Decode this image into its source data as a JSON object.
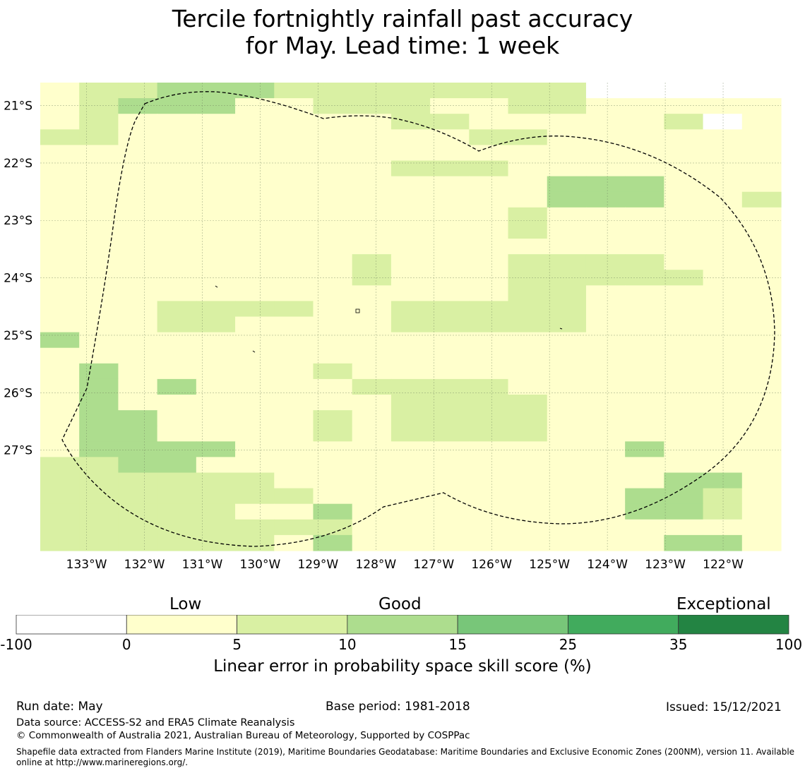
{
  "title_line1": "Tercile fortnightly rainfall past accuracy",
  "title_line2": "for May. Lead time: 1 week",
  "map": {
    "lon_labels": [
      "133°W",
      "132°W",
      "131°W",
      "130°W",
      "129°W",
      "128°W",
      "127°W",
      "126°W",
      "125°W",
      "124°W",
      "123°W",
      "122°W"
    ],
    "lon_values": [
      -133,
      -132,
      -131,
      -130,
      -129,
      -128,
      -127,
      -126,
      -125,
      -124,
      -123,
      -122
    ],
    "lat_labels": [
      "21°S",
      "22°S",
      "23°S",
      "24°S",
      "25°S",
      "26°S",
      "27°S"
    ],
    "lat_values": [
      -21,
      -22,
      -23,
      -24,
      -25,
      -26,
      -27
    ],
    "lon_range": [
      -133.8,
      -121.0
    ],
    "lat_range": [
      -20.6,
      -28.75
    ],
    "grid_category_colors": [
      "#fefdf9",
      "#fdfccc",
      "#daed9f",
      "#addd8e",
      "#78c679",
      "#41ab5d",
      "#238443"
    ],
    "grid_rows": [
      "1223332222222200000",
      "1233311222112211111",
      "1211111112211111201",
      "2211111111122111111",
      "1111111111111111111",
      "1111111112221111111",
      "1111111111111333111",
      "1111111111111333112",
      "1111111111112111111",
      "1111111111112111111",
      "1111111111111111111",
      "1111111121112222111",
      "1111111121112222211",
      "1111111111112211111",
      "1112222112222211111",
      "1112211112222211111",
      "3111111111111111111",
      "1111111111111111111",
      "1311111211111111111",
      "1313111122221111111",
      "1311111112222111111",
      "1331111212222111111",
      "1331111212222111111",
      "1333311111111113111",
      "2233111111111111111",
      "2222221111111111331",
      "2222222111111113321",
      "2222211311111113321",
      "2222222211111111111",
      "2222221311111111331"
    ]
  },
  "colorbar": {
    "category_low": "Low",
    "category_good": "Good",
    "category_exceptional": "Exceptional",
    "boundaries": [
      "-100",
      "0",
      "5",
      "10",
      "15",
      "25",
      "35",
      "100"
    ],
    "colors": [
      "#ffffff",
      "#ffffcc",
      "#d9f0a3",
      "#addd8e",
      "#78c679",
      "#41ab5d",
      "#238443"
    ],
    "label": "Linear error in probability space skill score (%)"
  },
  "footer": {
    "run_date": "Run date: May",
    "base_period": "Base period: 1981-2018",
    "issued": "Issued: 15/12/2021",
    "data_source": "Data source: ACCESS-S2 and ERA5 Climate Reanalysis",
    "copyright": "© Commonwealth of Australia 2021, Australian Bureau of Meteorology, Supported by COSPPac",
    "shapefile": "Shapefile data extracted from Flanders Marine Institute (2019), Maritime Boundaries Geodatabase: Maritime Boundaries and Exclusive Economic Zones (200NM), version 11. Available online at http://www.marineregions.org/."
  }
}
